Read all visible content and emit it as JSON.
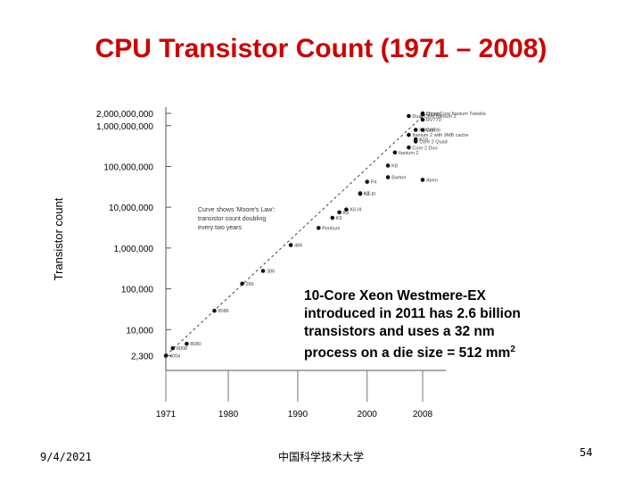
{
  "slide": {
    "title": "CPU Transistor Count (1971 – 2008)",
    "callout": {
      "line1": "10-Core Xeon Westmere-EX",
      "line2": "introduced in 2011 has 2.6 billion",
      "line3": "transistors and uses a 32 nm",
      "line4_main": "process on a die size = 512 mm",
      "line4_sup": "2"
    },
    "footer": {
      "date": "9/4/2021",
      "center": "中国科学技术大学",
      "page": "54"
    }
  },
  "chart_data": {
    "type": "scatter",
    "scale": "log",
    "ylabel": "Transistor count",
    "xlabel": "",
    "x_ticks": [
      1971,
      1980,
      1990,
      2000,
      2008
    ],
    "y_ticks": [
      {
        "v": 2300,
        "label": "2,300"
      },
      {
        "v": 10000,
        "label": "10,000"
      },
      {
        "v": 100000,
        "label": "100,000"
      },
      {
        "v": 1000000,
        "label": "1,000,000"
      },
      {
        "v": 10000000,
        "label": "10,000,000"
      },
      {
        "v": 100000000,
        "label": "100,000,000"
      },
      {
        "v": 1000000000,
        "label": "1,000,000,000"
      },
      {
        "v": 2000000000,
        "label": "2,000,000,000"
      }
    ],
    "annotation": {
      "line1": "Curve shows 'Moore's Law':",
      "line2": "transistor count doubling",
      "line3": "every two years"
    },
    "trend": {
      "x": [
        1971,
        2008
      ],
      "y": [
        2300,
        1700000000
      ]
    },
    "points": [
      {
        "x": 1971,
        "y": 2300,
        "label": "4004"
      },
      {
        "x": 1972,
        "y": 3500,
        "label": "8008"
      },
      {
        "x": 1974,
        "y": 4500,
        "label": "8080"
      },
      {
        "x": 1978,
        "y": 29000,
        "label": "8086"
      },
      {
        "x": 1982,
        "y": 134000,
        "label": "286"
      },
      {
        "x": 1985,
        "y": 275000,
        "label": "386"
      },
      {
        "x": 1989,
        "y": 1180000,
        "label": "486"
      },
      {
        "x": 1993,
        "y": 3100000,
        "label": "Pentium"
      },
      {
        "x": 1995,
        "y": 5500000,
        "label": "K5"
      },
      {
        "x": 1996,
        "y": 7500000,
        "label": "K6"
      },
      {
        "x": 1997,
        "y": 8800000,
        "label": "K6-III"
      },
      {
        "x": 1999,
        "y": 21300000,
        "label": "K6-III"
      },
      {
        "x": 1999,
        "y": 22000000,
        "label": "K7"
      },
      {
        "x": 2000,
        "y": 42000000,
        "label": "P4"
      },
      {
        "x": 2003,
        "y": 54300000,
        "label": "Barton"
      },
      {
        "x": 2003,
        "y": 105000000,
        "label": "K8"
      },
      {
        "x": 2004,
        "y": 220000000,
        "label": "Itanium 2"
      },
      {
        "x": 2006,
        "y": 291000000,
        "label": "Core 2 Duo"
      },
      {
        "x": 2008,
        "y": 47000000,
        "label": "Atom"
      },
      {
        "x": 2007,
        "y": 410000000,
        "label": "Core 2 Quad"
      },
      {
        "x": 2006,
        "y": 592000000,
        "label": "Itanium 2 with 9MB cache"
      },
      {
        "x": 2007,
        "y": 463000000,
        "label": "K10"
      },
      {
        "x": 2006,
        "y": 1720000000,
        "label": "Dual-Core Itanium 2"
      },
      {
        "x": 2008,
        "y": 2000000000,
        "label": "Quad-Core Itanium Tukwila"
      },
      {
        "x": 2007,
        "y": 789000000,
        "label": "POWER6"
      },
      {
        "x": 2008,
        "y": 1900000000,
        "label": "GT200"
      },
      {
        "x": 2008,
        "y": 1400000000,
        "label": "RV770"
      },
      {
        "x": 2008,
        "y": 781000000,
        "label": "Cell"
      }
    ]
  }
}
